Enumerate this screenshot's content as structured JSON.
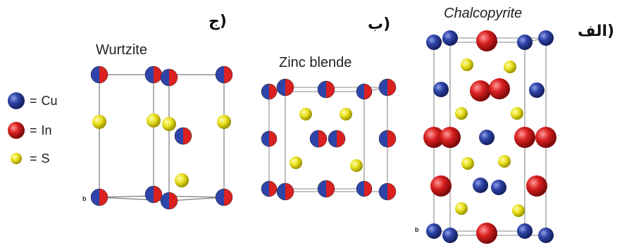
{
  "legend": {
    "items": [
      {
        "symbol": "=",
        "element": "Cu",
        "color": "#2b3d9a"
      },
      {
        "symbol": "=",
        "element": "In",
        "color": "#d21e1e"
      },
      {
        "symbol": "=",
        "element": "S",
        "color": "#e8e01c"
      }
    ]
  },
  "panels": {
    "wurtzite": {
      "label": "ج)",
      "title": "Wurtzite",
      "axis": "b"
    },
    "zinc_blende": {
      "label": "ب)",
      "title": "Zinc blende"
    },
    "chalcopyrite": {
      "label": "الف)",
      "title": "Chalcopyrite",
      "axis": "b"
    }
  },
  "colors": {
    "cu": "#2b3d9a",
    "in": "#d21e1e",
    "s": "#e8e01c",
    "cell_line": "#7a7a7a"
  }
}
